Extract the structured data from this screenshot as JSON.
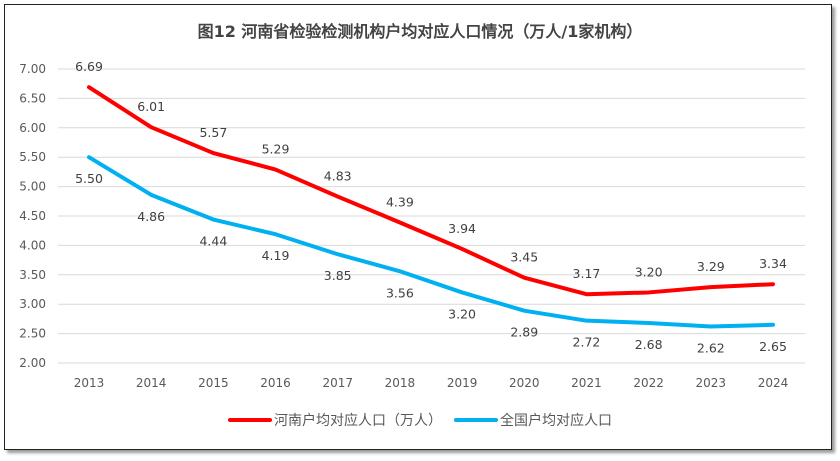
{
  "chart_data": {
    "type": "line",
    "title": "图12  河南省检验检测机构户均对应人口情况（万人/1家机构）",
    "x": [
      "2013",
      "2014",
      "2015",
      "2016",
      "2017",
      "2018",
      "2019",
      "2020",
      "2021",
      "2022",
      "2023",
      "2024"
    ],
    "ylim": [
      2.0,
      7.0
    ],
    "yticks": [
      "2.00",
      "2.50",
      "3.00",
      "3.50",
      "4.00",
      "4.50",
      "5.00",
      "5.50",
      "6.00",
      "6.50",
      "7.00"
    ],
    "grid": true,
    "legend": "bottom",
    "series": [
      {
        "name": "河南户均对应人口（万人）",
        "color": "#ff0000",
        "label_position": "above",
        "values": [
          6.69,
          6.01,
          5.57,
          5.29,
          4.83,
          4.39,
          3.94,
          3.45,
          3.17,
          3.2,
          3.29,
          3.34
        ]
      },
      {
        "name": "全国户均对应人口",
        "color": "#00b0f0",
        "label_position": "below",
        "values": [
          5.5,
          4.86,
          4.44,
          4.19,
          3.85,
          3.56,
          3.2,
          2.89,
          2.72,
          2.68,
          2.62,
          2.65
        ]
      }
    ]
  }
}
